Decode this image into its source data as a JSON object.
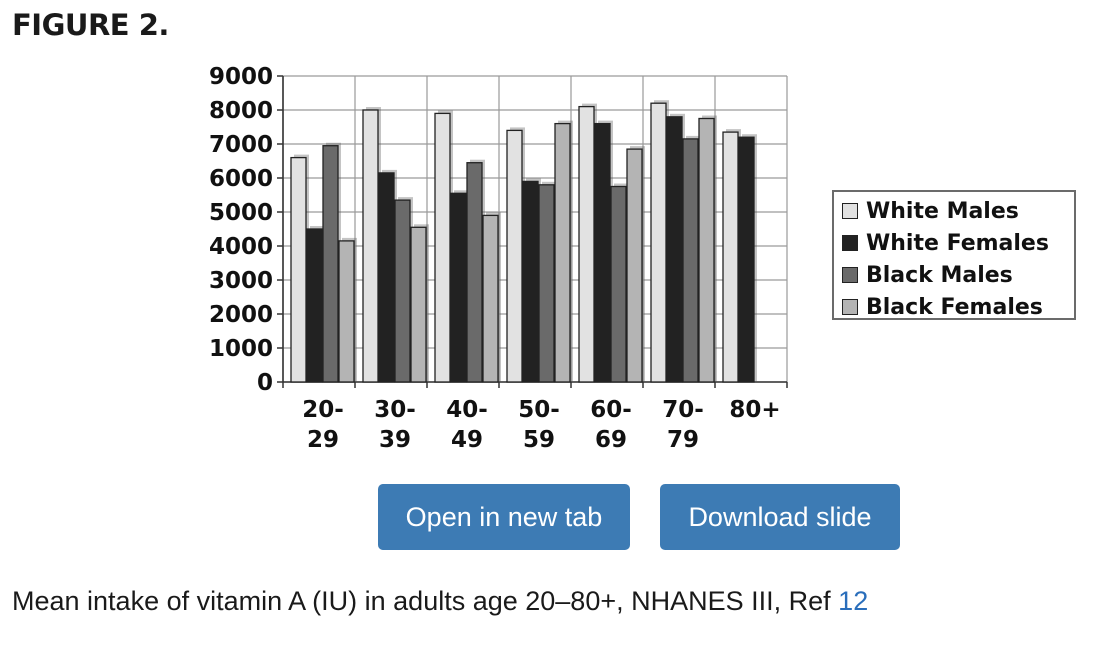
{
  "figure_label": "FIGURE 2.",
  "buttons": {
    "open_new_tab": "Open in new tab",
    "download_slide": "Download slide"
  },
  "caption": {
    "text": "Mean intake of vitamin A (IU) in adults age 20–80+, NHANES III, Ref ",
    "ref_link": "12"
  },
  "chart_data": {
    "type": "bar",
    "title": "",
    "xlabel": "",
    "ylabel": "",
    "ylim": [
      0,
      9000
    ],
    "yticks": [
      0,
      1000,
      2000,
      3000,
      4000,
      5000,
      6000,
      7000,
      8000,
      9000
    ],
    "categories": [
      "20-29",
      "30-39",
      "40-49",
      "50-59",
      "60-69",
      "70-79",
      "80+"
    ],
    "category_labels": [
      [
        "20-",
        "29"
      ],
      [
        "30-",
        "39"
      ],
      [
        "40-",
        "49"
      ],
      [
        "50-",
        "59"
      ],
      [
        "60-",
        "69"
      ],
      [
        "70-",
        "79"
      ],
      [
        "80+"
      ]
    ],
    "grid": true,
    "legend_position": "right",
    "series": [
      {
        "name": "White Males",
        "color": "#e2e2e2",
        "values": [
          6600,
          8000,
          7900,
          7400,
          8100,
          8200,
          7350
        ]
      },
      {
        "name": "White Females",
        "color": "#222222",
        "values": [
          4500,
          6150,
          5550,
          5900,
          7600,
          7800,
          7200
        ]
      },
      {
        "name": "Black Males",
        "color": "#6a6a6a",
        "values": [
          6950,
          5350,
          6450,
          5800,
          5750,
          7150,
          null
        ]
      },
      {
        "name": "Black Females",
        "color": "#b4b4b4",
        "values": [
          4150,
          4550,
          4900,
          7600,
          6850,
          7750,
          null
        ]
      }
    ]
  }
}
